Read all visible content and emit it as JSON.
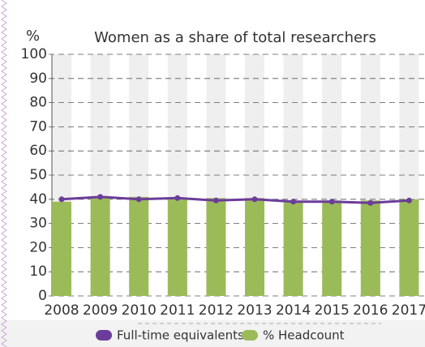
{
  "chart_data": {
    "type": "combo",
    "title": "Women as a share of total researchers",
    "y_label": "%",
    "categories": [
      "2008",
      "2009",
      "2010",
      "2011",
      "2012",
      "2013",
      "2014",
      "2015",
      "2016",
      "2017"
    ],
    "series": [
      {
        "name": "Full-time equivalents",
        "type": "line",
        "color": "#6b3d9a",
        "values": [
          40,
          41,
          40,
          40.5,
          39.5,
          40,
          39,
          39,
          38.5,
          39.5
        ]
      },
      {
        "name": "% Headcount",
        "type": "bar",
        "color": "#9bbb59",
        "values": [
          39,
          41,
          41,
          40.5,
          40.5,
          40.5,
          39,
          39.5,
          39.5,
          40
        ]
      }
    ],
    "ylim": [
      0,
      100
    ],
    "yticks": [
      0,
      10,
      20,
      30,
      40,
      50,
      60,
      70,
      80,
      90,
      100
    ],
    "grid": true
  }
}
